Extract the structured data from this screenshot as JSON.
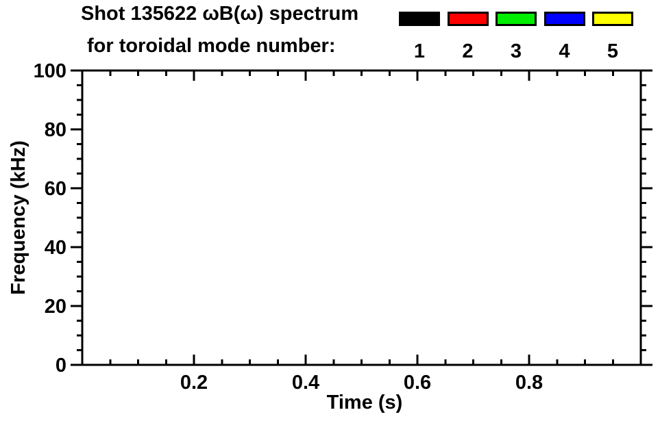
{
  "page": {
    "background_color": "#ffffff",
    "text_color": "#000000"
  },
  "title": {
    "line1": "Shot 135622 ωB(ω) spectrum",
    "line2": "for toroidal mode number:"
  },
  "legend": {
    "items": [
      {
        "label": "1",
        "color": "#000000"
      },
      {
        "label": "2",
        "color": "#ff0000"
      },
      {
        "label": "3",
        "color": "#00ee00"
      },
      {
        "label": "4",
        "color": "#0000ff"
      },
      {
        "label": "5",
        "color": "#ffff00"
      }
    ]
  },
  "chart_data": {
    "type": "line",
    "title": "Shot 135622 ωB(ω) spectrum for toroidal mode number: 1 2 3 4 5",
    "xlabel": "Time (s)",
    "ylabel": "Frequency (kHz)",
    "xlim": [
      0,
      1.0
    ],
    "ylim": [
      0,
      100
    ],
    "x_major_ticks": [
      0.2,
      0.4,
      0.6,
      0.8
    ],
    "x_tick_labels": [
      "0.2",
      "0.4",
      "0.6",
      "0.8"
    ],
    "x_minor_tick_interval": 0.05,
    "y_major_ticks": [
      0,
      20,
      40,
      60,
      80,
      100
    ],
    "y_tick_labels": [
      "0",
      "20",
      "40",
      "60",
      "80",
      "100"
    ],
    "y_minor_tick_interval": 5,
    "grid": false,
    "frame": "box with outward y ticks and inward x ticks",
    "legend_position": "top-right above plot",
    "legend_entries": [
      {
        "name": "1",
        "color": "#000000"
      },
      {
        "name": "2",
        "color": "#ff0000"
      },
      {
        "name": "3",
        "color": "#00ee00"
      },
      {
        "name": "4",
        "color": "#0000ff"
      },
      {
        "name": "5",
        "color": "#ffff00"
      }
    ],
    "series": [],
    "plot_area_content": "empty (no spectrum data drawn)"
  }
}
